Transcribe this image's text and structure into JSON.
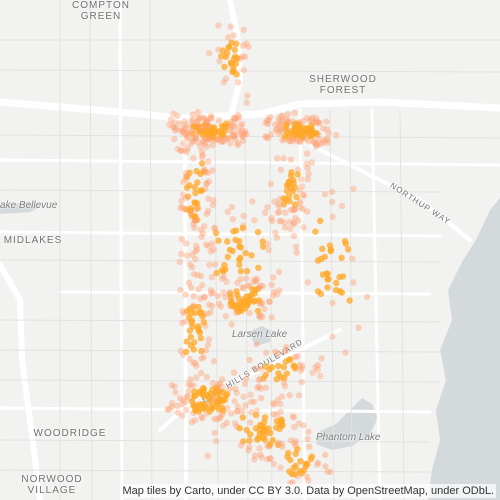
{
  "map": {
    "place_labels": {
      "compton": "COMPTON",
      "green": "GREEN",
      "sherwood": "SHERWOOD",
      "forest": "FOREST",
      "midlakes": "MIDLAKES",
      "woodridge": "WOODRIDGE",
      "norwood": "NORWOOD",
      "village": "VILLAGE"
    },
    "water_labels": {
      "larsen": "Larsen Lake",
      "phantom": "Phantom Lake",
      "bellevue": "ake Bellevue"
    },
    "road_labels": {
      "northup": "NORTHUP WAY",
      "lakehills": "LAKE HILLS BOULEVARD"
    },
    "attribution": "Map tiles by Carto, under CC BY 3.0. Data by OpenStreetMap, under ODbL.",
    "colors": {
      "background": "#f2f2f0",
      "water": "#d4dadc",
      "roads": "#ffffff",
      "points": "#ffa726",
      "points_fill": "#ff9e6e"
    }
  }
}
